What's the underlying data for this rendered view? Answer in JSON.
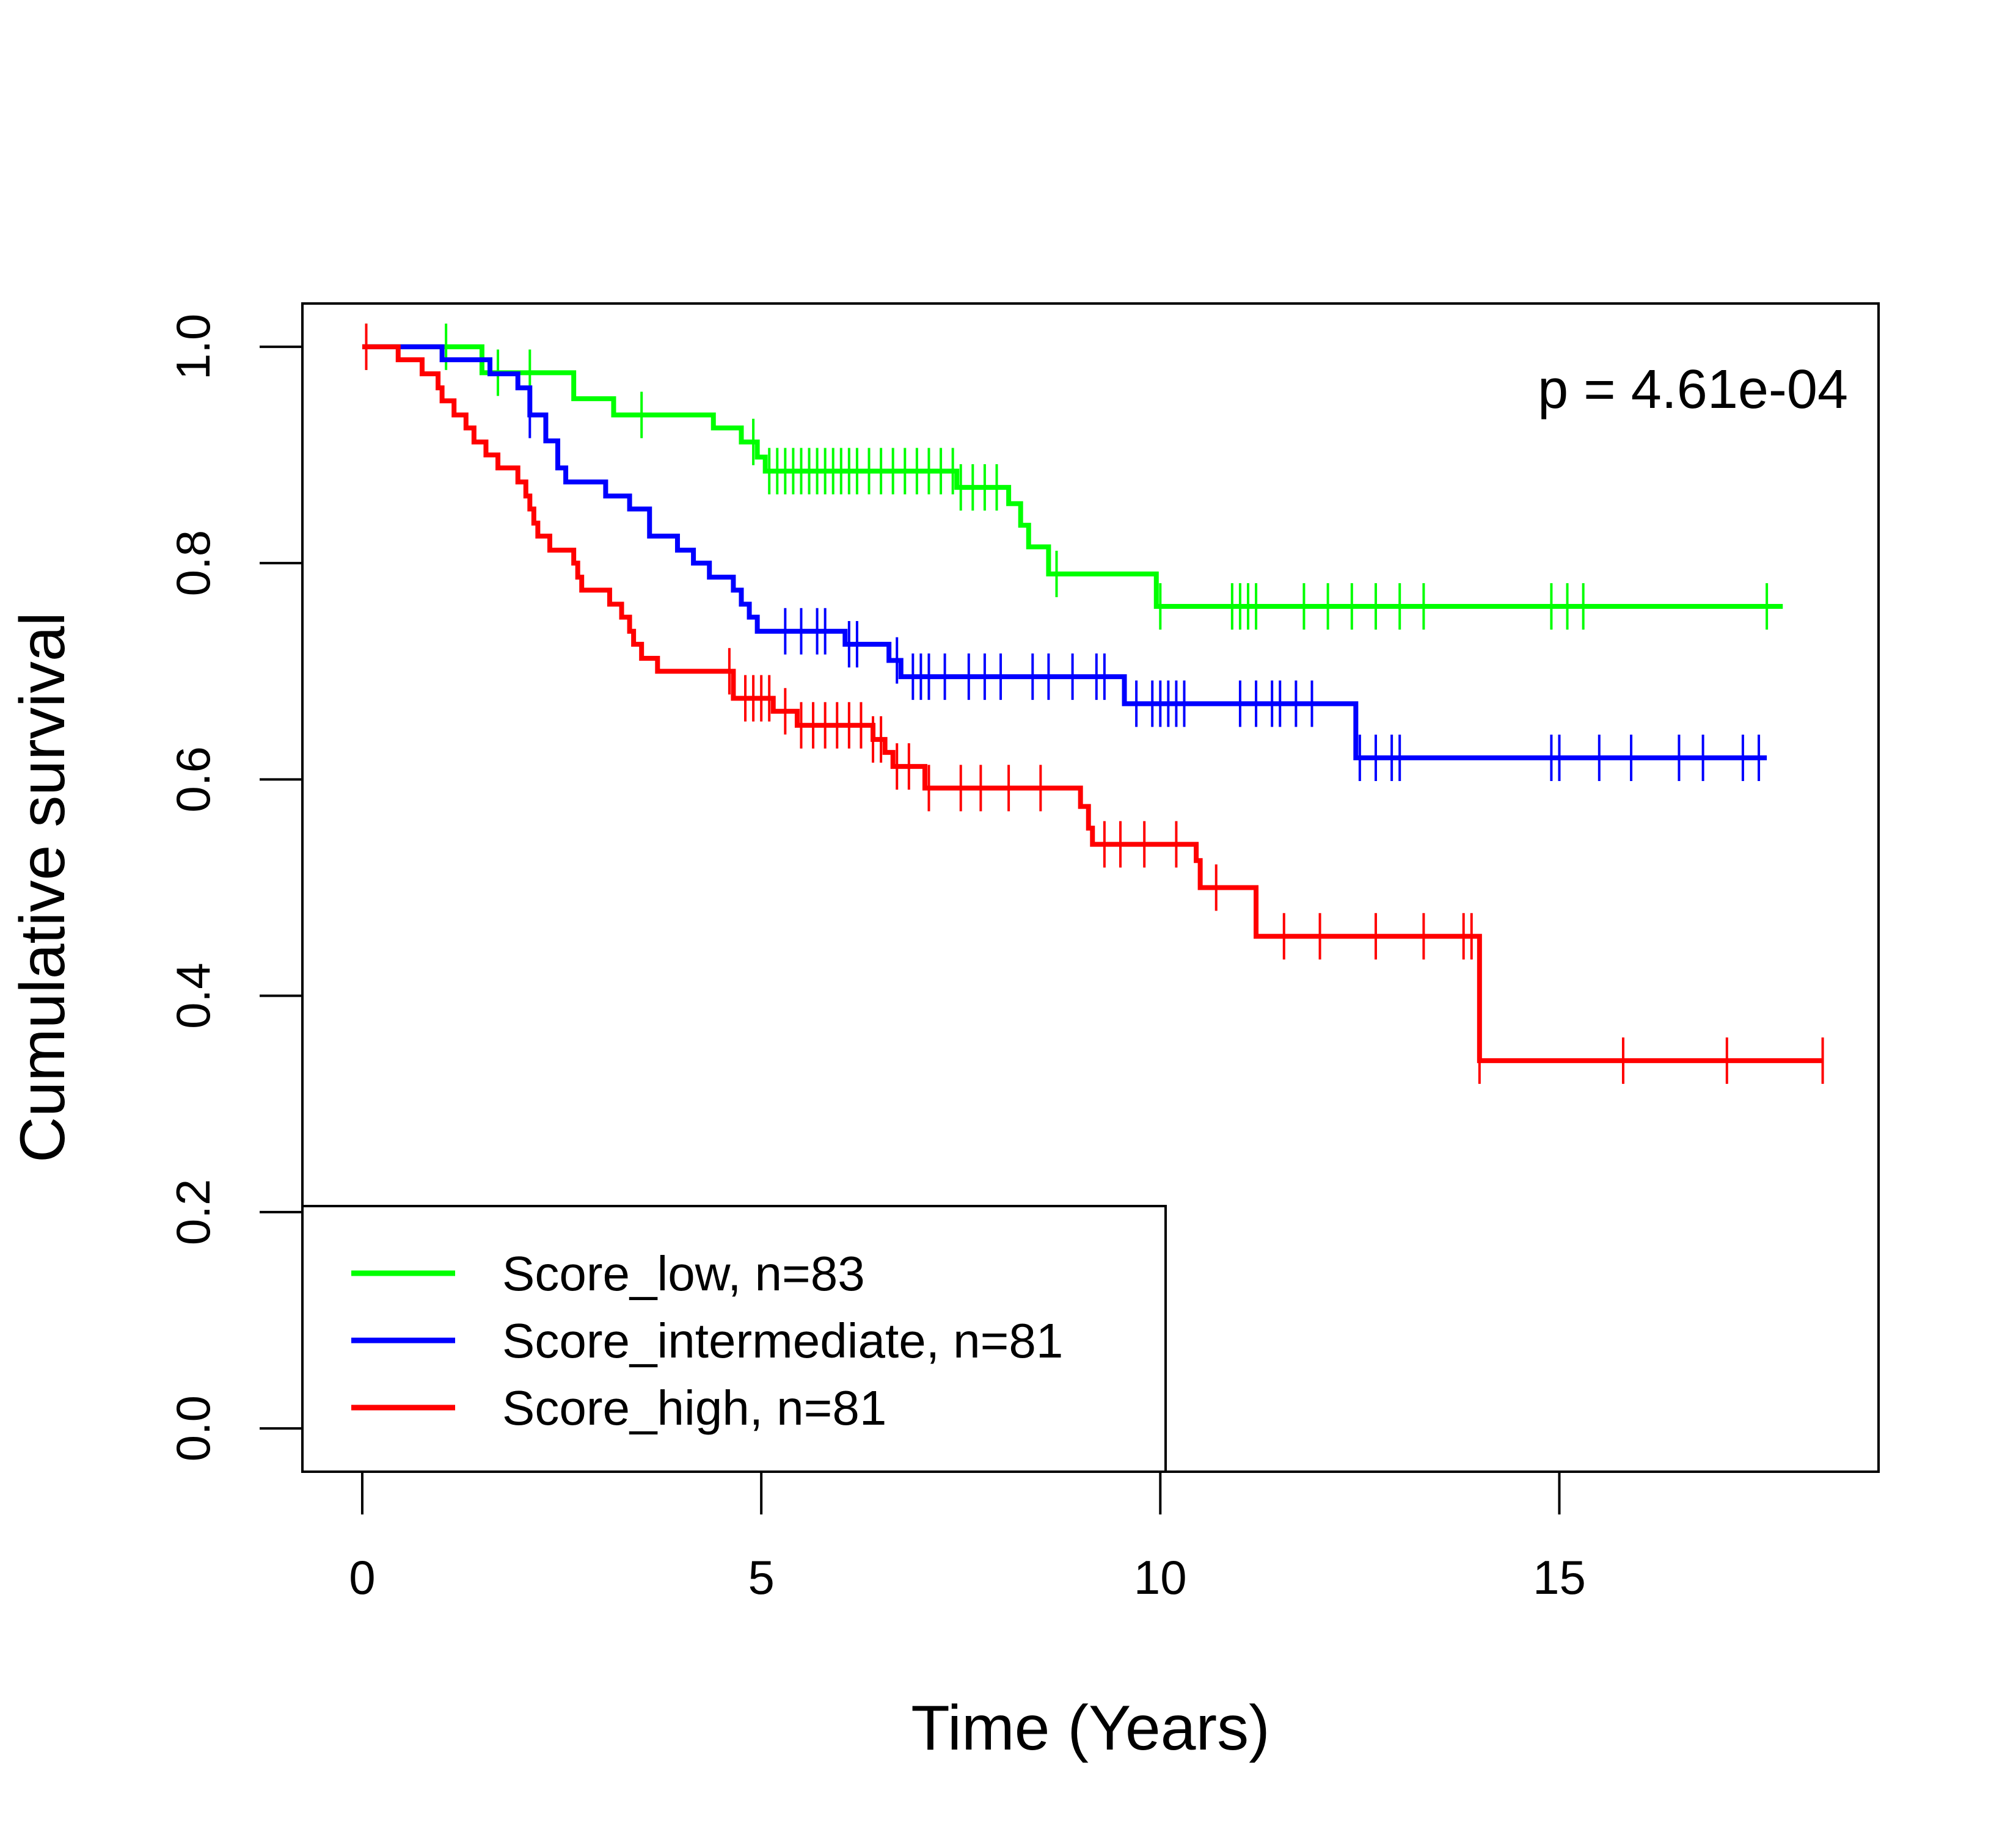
{
  "chart_data": {
    "type": "line",
    "subtype": "kaplan-meier",
    "title": "",
    "xlabel": "Time (Years)",
    "ylabel": "Cumulative survival",
    "xlim": [
      -0.75,
      19
    ],
    "ylim": [
      -0.04,
      1.04
    ],
    "xticks": [
      0,
      5,
      10,
      15
    ],
    "xtick_labels": [
      "0",
      "5",
      "10",
      "15"
    ],
    "yticks": [
      0.0,
      0.2,
      0.4,
      0.6,
      0.8,
      1.0
    ],
    "ytick_labels": [
      "0.0",
      "0.2",
      "0.4",
      "0.6",
      "0.8",
      "1.0"
    ],
    "grid": false,
    "legend_position": "bottom-left",
    "annotation": "p = 4.61e-04",
    "series": [
      {
        "name": "Score_low, n=83",
        "color": "#00ff00",
        "steps": [
          [
            0,
            1.0
          ],
          [
            1.5,
            0.976
          ],
          [
            2.65,
            0.952
          ],
          [
            3.15,
            0.937
          ],
          [
            4.4,
            0.925
          ],
          [
            4.75,
            0.912
          ],
          [
            4.95,
            0.898
          ],
          [
            5.05,
            0.885
          ],
          [
            7.45,
            0.87
          ],
          [
            8.1,
            0.855
          ],
          [
            8.25,
            0.835
          ],
          [
            8.35,
            0.815
          ],
          [
            8.6,
            0.79
          ],
          [
            9.95,
            0.76
          ],
          [
            17.8,
            0.76
          ]
        ],
        "censor_times": [
          0.05,
          1.05,
          1.7,
          2.1,
          3.5,
          4.9,
          5.1,
          5.2,
          5.3,
          5.4,
          5.5,
          5.6,
          5.7,
          5.8,
          5.9,
          6.0,
          6.1,
          6.2,
          6.35,
          6.5,
          6.65,
          6.8,
          6.95,
          7.1,
          7.25,
          7.4,
          7.5,
          7.65,
          7.8,
          7.95,
          8.7,
          10.0,
          10.9,
          11.0,
          11.1,
          11.2,
          11.8,
          12.1,
          12.4,
          12.7,
          13.0,
          13.3,
          14.9,
          15.1,
          15.3,
          17.6
        ]
      },
      {
        "name": "Score_intermediate, n=81",
        "color": "#0000ff",
        "steps": [
          [
            0,
            1.0
          ],
          [
            1.0,
            0.988
          ],
          [
            1.6,
            0.975
          ],
          [
            1.95,
            0.962
          ],
          [
            2.1,
            0.937
          ],
          [
            2.3,
            0.913
          ],
          [
            2.45,
            0.888
          ],
          [
            2.55,
            0.875
          ],
          [
            3.05,
            0.862
          ],
          [
            3.35,
            0.85
          ],
          [
            3.6,
            0.825
          ],
          [
            3.95,
            0.812
          ],
          [
            4.15,
            0.8
          ],
          [
            4.35,
            0.787
          ],
          [
            4.65,
            0.775
          ],
          [
            4.75,
            0.762
          ],
          [
            4.85,
            0.75
          ],
          [
            4.95,
            0.737
          ],
          [
            6.05,
            0.725
          ],
          [
            6.6,
            0.71
          ],
          [
            6.75,
            0.695
          ],
          [
            9.55,
            0.67
          ],
          [
            12.45,
            0.62
          ],
          [
            17.6,
            0.62
          ]
        ],
        "censor_times": [
          2.1,
          5.3,
          5.5,
          5.7,
          5.8,
          6.1,
          6.2,
          6.7,
          6.9,
          7.0,
          7.1,
          7.3,
          7.6,
          7.8,
          8.0,
          8.4,
          8.6,
          8.9,
          9.2,
          9.3,
          9.7,
          9.9,
          10.0,
          10.1,
          10.2,
          10.3,
          11.0,
          11.2,
          11.4,
          11.5,
          11.7,
          11.9,
          12.5,
          12.7,
          12.9,
          13.0,
          14.9,
          15.0,
          15.5,
          15.9,
          16.5,
          16.8,
          17.3,
          17.5
        ]
      },
      {
        "name": "Score_high, n=81",
        "color": "#ff0000",
        "steps": [
          [
            0,
            1.0
          ],
          [
            0.45,
            0.988
          ],
          [
            0.75,
            0.975
          ],
          [
            0.95,
            0.962
          ],
          [
            1.0,
            0.95
          ],
          [
            1.15,
            0.937
          ],
          [
            1.3,
            0.925
          ],
          [
            1.4,
            0.912
          ],
          [
            1.55,
            0.9
          ],
          [
            1.7,
            0.888
          ],
          [
            1.95,
            0.875
          ],
          [
            2.05,
            0.862
          ],
          [
            2.1,
            0.85
          ],
          [
            2.15,
            0.837
          ],
          [
            2.2,
            0.825
          ],
          [
            2.35,
            0.812
          ],
          [
            2.65,
            0.8
          ],
          [
            2.7,
            0.787
          ],
          [
            2.75,
            0.775
          ],
          [
            3.1,
            0.762
          ],
          [
            3.25,
            0.75
          ],
          [
            3.35,
            0.737
          ],
          [
            3.4,
            0.725
          ],
          [
            3.5,
            0.712
          ],
          [
            3.7,
            0.7
          ],
          [
            4.65,
            0.675
          ],
          [
            5.15,
            0.663
          ],
          [
            5.45,
            0.65
          ],
          [
            6.4,
            0.637
          ],
          [
            6.55,
            0.625
          ],
          [
            6.65,
            0.612
          ],
          [
            7.05,
            0.592
          ],
          [
            9.0,
            0.575
          ],
          [
            9.1,
            0.555
          ],
          [
            9.15,
            0.54
          ],
          [
            10.45,
            0.525
          ],
          [
            10.5,
            0.5
          ],
          [
            11.2,
            0.455
          ],
          [
            14.0,
            0.34
          ],
          [
            18.3,
            0.34
          ]
        ],
        "censor_times": [
          0.05,
          4.6,
          4.8,
          4.9,
          5.0,
          5.1,
          5.3,
          5.5,
          5.65,
          5.8,
          5.95,
          6.1,
          6.25,
          6.4,
          6.5,
          6.7,
          6.85,
          7.1,
          7.5,
          7.75,
          8.1,
          8.5,
          9.3,
          9.5,
          9.8,
          10.2,
          10.7,
          11.55,
          12.0,
          12.7,
          13.3,
          13.8,
          13.9,
          14.0,
          15.8,
          17.1,
          18.3
        ]
      }
    ]
  }
}
